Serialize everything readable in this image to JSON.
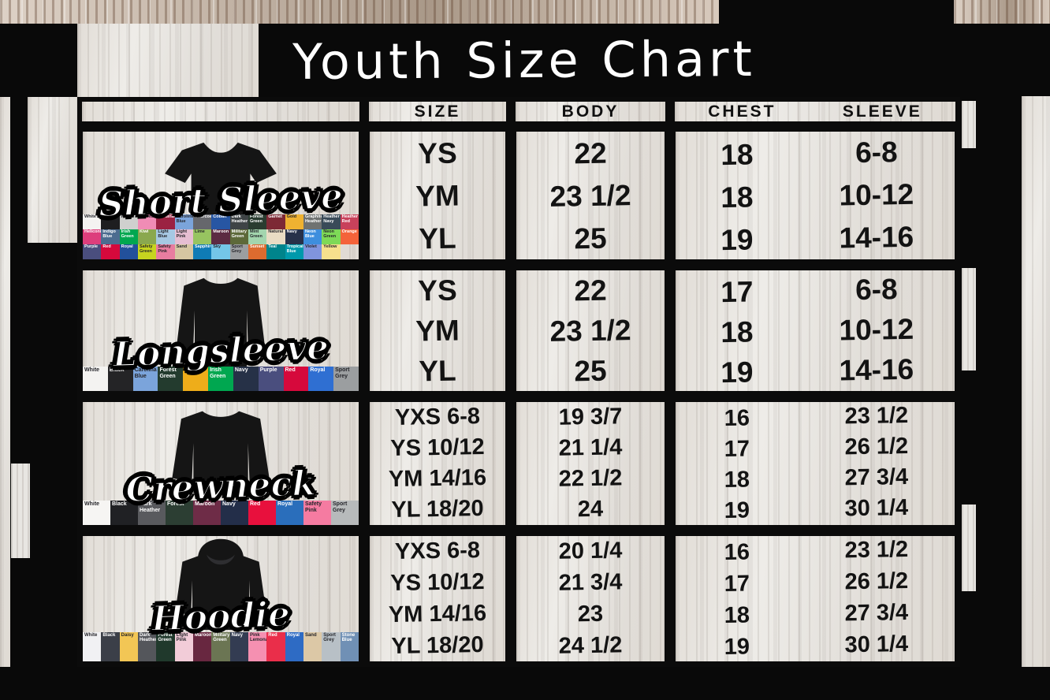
{
  "title": "Youth Size Chart",
  "headers": {
    "size": "SIZE",
    "body": "BODY",
    "chest": "CHEST",
    "sleeve": "SLEEVE"
  },
  "sections": [
    {
      "label": "Short Sleeve",
      "garment": "tee",
      "rows": [
        {
          "size": "YS",
          "body": "22",
          "chest": "18",
          "sleeve": "6-8"
        },
        {
          "size": "YM",
          "body": "23 1/2",
          "chest": "18",
          "sleeve": "10-12"
        },
        {
          "size": "YL",
          "body": "25",
          "chest": "19",
          "sleeve": "14-16"
        }
      ],
      "colors": [
        {
          "name": "White",
          "hex": "#f4f3f1"
        },
        {
          "name": "Black",
          "hex": "#1e1e20"
        },
        {
          "name": "Ash",
          "hex": "#cfd0ce"
        },
        {
          "name": "Azalea",
          "hex": "#f08cb5"
        },
        {
          "name": "Cardinal",
          "hex": "#9b2242"
        },
        {
          "name": "Carolina Blue",
          "hex": "#7ba4db"
        },
        {
          "name": "Charcoal",
          "hex": "#66676c"
        },
        {
          "name": "Cobalt",
          "hex": "#2756a3"
        },
        {
          "name": "Dark Heather",
          "hex": "#3f4446"
        },
        {
          "name": "Forest Green",
          "hex": "#2a3c30"
        },
        {
          "name": "Garnet",
          "hex": "#7d2935"
        },
        {
          "name": "Gold",
          "hex": "#efb231"
        },
        {
          "name": "Graphite Heather",
          "hex": "#6f7271"
        },
        {
          "name": "Heather Navy",
          "hex": "#394a58"
        },
        {
          "name": "Heather Red",
          "hex": "#c8415b"
        },
        {
          "name": "Heliconia",
          "hex": "#dd3e7c"
        },
        {
          "name": "Indigo Blue",
          "hex": "#4c6c90"
        },
        {
          "name": "Irish Green",
          "hex": "#00a750"
        },
        {
          "name": "Kiwi",
          "hex": "#8aa84f"
        },
        {
          "name": "Light Blue",
          "hex": "#a6c8e3"
        },
        {
          "name": "Light Pink",
          "hex": "#e6bed2"
        },
        {
          "name": "Lime",
          "hex": "#97c460"
        },
        {
          "name": "Maroon",
          "hex": "#5c2b42"
        },
        {
          "name": "Military Green",
          "hex": "#5d6939"
        },
        {
          "name": "Mint Green",
          "hex": "#a3d5ae"
        },
        {
          "name": "Natural",
          "hex": "#e9dcc4"
        },
        {
          "name": "Navy",
          "hex": "#27314a"
        },
        {
          "name": "Neon Blue",
          "hex": "#3e8ede"
        },
        {
          "name": "Neon Green",
          "hex": "#7ed957"
        },
        {
          "name": "Orange",
          "hex": "#f4633a"
        },
        {
          "name": "Purple",
          "hex": "#4a4e7e"
        },
        {
          "name": "Red",
          "hex": "#d6093c"
        },
        {
          "name": "Royal",
          "hex": "#22509b"
        },
        {
          "name": "Safety Green",
          "hex": "#c6d41f"
        },
        {
          "name": "Safety Pink",
          "hex": "#e87da0"
        },
        {
          "name": "Sand",
          "hex": "#d5c6a2"
        },
        {
          "name": "Sapphire",
          "hex": "#0f7bb5"
        },
        {
          "name": "Sky",
          "hex": "#74c6e8"
        },
        {
          "name": "Sport Grey",
          "hex": "#9b9ea0"
        },
        {
          "name": "Sunset",
          "hex": "#dc6b2f"
        },
        {
          "name": "Teal",
          "hex": "#00848b"
        },
        {
          "name": "Tropical Blue",
          "hex": "#0099ab"
        },
        {
          "name": "Violet",
          "hex": "#8094dd"
        },
        {
          "name": "Yellow",
          "hex": "#f6e08d"
        }
      ]
    },
    {
      "label": "Longsleeve",
      "garment": "longsleeve",
      "rows": [
        {
          "size": "YS",
          "body": "22",
          "chest": "17",
          "sleeve": "6-8"
        },
        {
          "size": "YM",
          "body": "23 1/2",
          "chest": "18",
          "sleeve": "10-12"
        },
        {
          "size": "YL",
          "body": "25",
          "chest": "19",
          "sleeve": "14-16"
        }
      ],
      "colors": [
        {
          "name": "White",
          "hex": "#f4f3f1"
        },
        {
          "name": "Black",
          "hex": "#242426"
        },
        {
          "name": "Carolina Blue",
          "hex": "#7ba4db"
        },
        {
          "name": "Forest Green",
          "hex": "#233b2e"
        },
        {
          "name": "Gold",
          "hex": "#eead1a"
        },
        {
          "name": "Irish Green",
          "hex": "#00a750"
        },
        {
          "name": "Navy",
          "hex": "#263147"
        },
        {
          "name": "Purple",
          "hex": "#4a4e7e"
        },
        {
          "name": "Red",
          "hex": "#d6093c"
        },
        {
          "name": "Royal",
          "hex": "#2f6fd2"
        },
        {
          "name": "Sport Grey",
          "hex": "#9b9ea0"
        }
      ]
    },
    {
      "label": "Crewneck",
      "garment": "crewneck",
      "rows": [
        {
          "size": "YXS 6-8",
          "body": "19 3/7",
          "chest": "16",
          "sleeve": "23 1/2"
        },
        {
          "size": "YS 10/12",
          "body": "21 1/4",
          "chest": "17",
          "sleeve": "26 1/2"
        },
        {
          "size": "YM 14/16",
          "body": "22 1/2",
          "chest": "18",
          "sleeve": "27 3/4"
        },
        {
          "size": "YL 18/20",
          "body": "24",
          "chest": "19",
          "sleeve": "30 1/4"
        }
      ],
      "colors": [
        {
          "name": "White",
          "hex": "#f6f5f3"
        },
        {
          "name": "Black",
          "hex": "#202124"
        },
        {
          "name": "Dark Heather",
          "hex": "#595a5e"
        },
        {
          "name": "Forest",
          "hex": "#2c3e33"
        },
        {
          "name": "Maroon",
          "hex": "#6e2c47"
        },
        {
          "name": "Navy",
          "hex": "#232e49"
        },
        {
          "name": "Red",
          "hex": "#e8103d"
        },
        {
          "name": "Royal",
          "hex": "#2a6ebb"
        },
        {
          "name": "Safety Pink",
          "hex": "#f57ba1"
        },
        {
          "name": "Sport Grey",
          "hex": "#b7babb"
        }
      ]
    },
    {
      "label": "Hoodie",
      "garment": "hoodie",
      "rows": [
        {
          "size": "YXS 6-8",
          "body": "20 1/4",
          "chest": "16",
          "sleeve": "23 1/2"
        },
        {
          "size": "YS 10/12",
          "body": "21 3/4",
          "chest": "17",
          "sleeve": "26 1/2"
        },
        {
          "size": "YM 14/16",
          "body": "23",
          "chest": "18",
          "sleeve": "27 3/4"
        },
        {
          "size": "YL 18/20",
          "body": "24 1/2",
          "chest": "19",
          "sleeve": "30 1/4"
        }
      ],
      "colors": [
        {
          "name": "White",
          "hex": "#f1f1f3"
        },
        {
          "name": "Black",
          "hex": "#3b3f48"
        },
        {
          "name": "Daisy",
          "hex": "#f2c655"
        },
        {
          "name": "Dark Heather",
          "hex": "#54565b"
        },
        {
          "name": "Forest Green",
          "hex": "#20392c"
        },
        {
          "name": "Light Pink",
          "hex": "#f2ccd8"
        },
        {
          "name": "Maroon",
          "hex": "#682740"
        },
        {
          "name": "Military Green",
          "hex": "#6b7553"
        },
        {
          "name": "Navy",
          "hex": "#333c52"
        },
        {
          "name": "Pink Lemonade",
          "hex": "#f590b1"
        },
        {
          "name": "Red",
          "hex": "#ea2e4a"
        },
        {
          "name": "Royal",
          "hex": "#2e6bc4"
        },
        {
          "name": "Sand",
          "hex": "#dcc8a6"
        },
        {
          "name": "Sport Grey",
          "hex": "#b8c0c6"
        },
        {
          "name": "Stone Blue",
          "hex": "#7090b5"
        }
      ]
    }
  ],
  "chart_data": [
    {
      "type": "table",
      "title": "Short Sleeve Youth Sizes",
      "columns": [
        "SIZE",
        "BODY",
        "CHEST",
        "SLEEVE"
      ],
      "rows": [
        [
          "YS",
          "22",
          "18",
          "6-8"
        ],
        [
          "YM",
          "23 1/2",
          "18",
          "10-12"
        ],
        [
          "YL",
          "25",
          "19",
          "14-16"
        ]
      ]
    },
    {
      "type": "table",
      "title": "Longsleeve Youth Sizes",
      "columns": [
        "SIZE",
        "BODY",
        "CHEST",
        "SLEEVE"
      ],
      "rows": [
        [
          "YS",
          "22",
          "17",
          "6-8"
        ],
        [
          "YM",
          "23 1/2",
          "18",
          "10-12"
        ],
        [
          "YL",
          "25",
          "19",
          "14-16"
        ]
      ]
    },
    {
      "type": "table",
      "title": "Crewneck Youth Sizes",
      "columns": [
        "SIZE",
        "BODY",
        "CHEST",
        "SLEEVE"
      ],
      "rows": [
        [
          "YXS 6-8",
          "19 3/7",
          "16",
          "23 1/2"
        ],
        [
          "YS 10/12",
          "21 1/4",
          "17",
          "26 1/2"
        ],
        [
          "YM 14/16",
          "22 1/2",
          "18",
          "27 3/4"
        ],
        [
          "YL 18/20",
          "24",
          "19",
          "30 1/4"
        ]
      ]
    },
    {
      "type": "table",
      "title": "Hoodie Youth Sizes",
      "columns": [
        "SIZE",
        "BODY",
        "CHEST",
        "SLEEVE"
      ],
      "rows": [
        [
          "YXS 6-8",
          "20 1/4",
          "16",
          "23 1/2"
        ],
        [
          "YS 10/12",
          "21 3/4",
          "17",
          "26 1/2"
        ],
        [
          "YM 14/16",
          "23",
          "18",
          "27 3/4"
        ],
        [
          "YL 18/20",
          "24 1/2",
          "19",
          "30 1/4"
        ]
      ]
    }
  ]
}
